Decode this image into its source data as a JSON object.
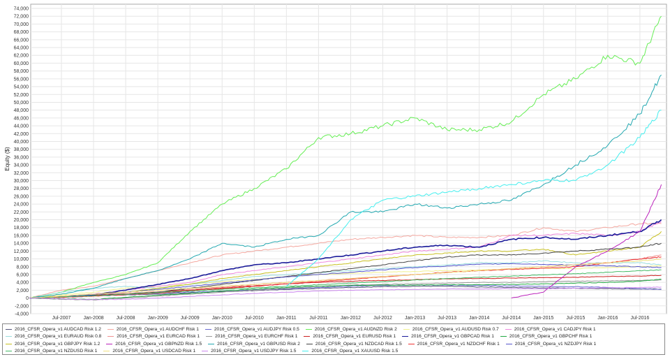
{
  "chart_data": {
    "type": "line",
    "ylabel": "Equity ($)",
    "xlabel": "",
    "ylim": [
      -4000,
      74000
    ],
    "y_ticks": [
      "-4,000",
      "-2,000",
      "0",
      "2,000",
      "4,000",
      "6,000",
      "8,000",
      "10,000",
      "12,000",
      "14,000",
      "16,000",
      "18,000",
      "20,000",
      "22,000",
      "24,000",
      "26,000",
      "28,000",
      "30,000",
      "32,000",
      "34,000",
      "36,000",
      "38,000",
      "40,000",
      "42,000",
      "44,000",
      "46,000",
      "48,000",
      "50,000",
      "52,000",
      "54,000",
      "56,000",
      "58,000",
      "60,000",
      "62,000",
      "64,000",
      "66,000",
      "68,000",
      "70,000",
      "72,000",
      "74,000"
    ],
    "x_ticks": [
      "Jul-2007",
      "Jan-2008",
      "Jul-2008",
      "Jan-2009",
      "Jul-2009",
      "Jan-2010",
      "Jul-2010",
      "Jan-2011",
      "Jul-2011",
      "Jan-2012",
      "Jul-2012",
      "Jan-2013",
      "Jul-2013",
      "Jan-2014",
      "Jul-2014",
      "Jan-2015",
      "Jul-2015",
      "Jan-2016",
      "Jul-2016"
    ],
    "grid": true,
    "legend": "bottom",
    "x": [
      "2007-01",
      "2007-07",
      "2008-01",
      "2008-07",
      "2009-01",
      "2009-07",
      "2010-01",
      "2010-07",
      "2011-01",
      "2011-07",
      "2012-01",
      "2012-07",
      "2013-01",
      "2013-07",
      "2014-01",
      "2014-07",
      "2015-01",
      "2015-07",
      "2016-01",
      "2016-07",
      "2016-11"
    ],
    "series": [
      {
        "name": "2016_CFSR_Opera_v1 AUDCAD Risk 1.2",
        "color": "#55557a",
        "values": [
          0,
          200,
          500,
          800,
          1000,
          1300,
          1600,
          1900,
          2200,
          2500,
          2700,
          2900,
          3000,
          3000,
          2800,
          2700,
          2600,
          2500,
          2400,
          2300,
          2300
        ]
      },
      {
        "name": "2016_CFSR_Opera_v1 AUDCHF Risk 1",
        "color": "#f4a8a0",
        "values": [
          0,
          2000,
          3000,
          5000,
          7000,
          9000,
          11000,
          12000,
          13000,
          14000,
          15000,
          15500,
          16000,
          15500,
          15500,
          16000,
          18000,
          17000,
          18000,
          19000,
          19000
        ]
      },
      {
        "name": "2016_CFSR_Opera_v1 AUDJPY Risk 0.5",
        "color": "#6a6ad0",
        "values": [
          0,
          300,
          600,
          900,
          1200,
          1500,
          1800,
          2100,
          2400,
          2700,
          3000,
          3200,
          3300,
          3300,
          3200,
          3100,
          3000,
          2900,
          2700,
          2400,
          2200
        ]
      },
      {
        "name": "2016_CFSR_Opera_v1 AUDNZD Risk 2",
        "color": "#66ee55",
        "values": [
          0,
          1500,
          4000,
          6000,
          9000,
          17000,
          24000,
          28000,
          33000,
          41000,
          42000,
          44000,
          46000,
          43000,
          43000,
          45000,
          52000,
          56000,
          62000,
          60000,
          72000
        ]
      },
      {
        "name": "2016_CFSR_Opera_v1 AUDUSD Risk 0.7",
        "color": "#f0f090",
        "values": [
          0,
          800,
          1500,
          2500,
          3000,
          3500,
          4200,
          4800,
          5400,
          6000,
          6300,
          6600,
          6800,
          7000,
          7200,
          7400,
          7600,
          7500,
          7800,
          8000,
          8300
        ]
      },
      {
        "name": "2016_CFSR_Opera_v1 CADJPY Risk 1",
        "color": "#ee88dd",
        "values": [
          0,
          500,
          1000,
          2000,
          3000,
          4000,
          6000,
          7000,
          8000,
          9000,
          10000,
          11000,
          12000,
          12500,
          13000,
          16000,
          16000,
          16500,
          16000,
          17000,
          19500
        ]
      },
      {
        "name": "2016_CFSR_Opera_v1 EURAUD Risk 0.8",
        "color": "#99dddd",
        "values": [
          0,
          1500,
          2500,
          3000,
          2500,
          3500,
          4500,
          5500,
          6000,
          6500,
          7000,
          7500,
          8000,
          8500,
          9000,
          9000,
          9500,
          9000,
          9000,
          9000,
          8500
        ]
      },
      {
        "name": "2016_CFSR_Opera_v1 EURCAD Risk 1",
        "color": "#f09090",
        "values": [
          0,
          400,
          800,
          1200,
          1600,
          2200,
          2800,
          3400,
          4000,
          4500,
          5000,
          5500,
          6000,
          6500,
          7000,
          7500,
          8000,
          8500,
          9000,
          10000,
          11000
        ]
      },
      {
        "name": "2016_CFSR_Opera_v1 EURCHF Risk 1",
        "color": "#999999",
        "values": [
          0,
          -300,
          -500,
          0,
          500,
          1000,
          1500,
          2000,
          2500,
          3000,
          3300,
          3500,
          3600,
          3800,
          4000,
          4000,
          4200,
          4300,
          4400,
          4500,
          4600
        ]
      },
      {
        "name": "2016_CFSR_Opera_v1 EURUSD Risk 1",
        "color": "#cc2222",
        "values": [
          0,
          300,
          700,
          1000,
          1500,
          2000,
          2600,
          3100,
          3600,
          4000,
          4300,
          4500,
          4700,
          4900,
          5000,
          5100,
          5200,
          5300,
          5500,
          5600,
          5800
        ]
      },
      {
        "name": "2016_CFSR_Opera_v1 GBPCAD Risk 1",
        "color": "#1a1a99",
        "values": [
          0,
          300,
          800,
          2000,
          3500,
          5000,
          7000,
          8500,
          9000,
          10000,
          11000,
          12000,
          13000,
          13500,
          13000,
          15000,
          15500,
          15000,
          16000,
          17000,
          20000
        ]
      },
      {
        "name": "2016_CFSR_Opera_v1 GBPCHF Risk 1",
        "color": "#22aa44",
        "values": [
          0,
          -200,
          -400,
          200,
          700,
          1200,
          1800,
          2300,
          2700,
          3000,
          3200,
          3300,
          3300,
          3400,
          3400,
          3500,
          3600,
          3800,
          4000,
          4300,
          4800
        ]
      },
      {
        "name": "2016_CFSR_Opera_v1 GBPJPY Risk 1.2",
        "color": "#c8c020",
        "values": [
          0,
          500,
          1000,
          1500,
          2500,
          3500,
          5000,
          6000,
          7000,
          8000,
          9000,
          10000,
          11000,
          11500,
          12000,
          12000,
          12500,
          11000,
          12000,
          13000,
          17000
        ]
      },
      {
        "name": "2016_CFSR_Opera_v1 GBPNZD Risk 1.5",
        "color": "#bb22bb",
        "values": [
          null,
          null,
          null,
          null,
          null,
          null,
          null,
          null,
          null,
          null,
          null,
          null,
          null,
          null,
          null,
          0,
          1500,
          8000,
          12000,
          17000,
          29000
        ]
      },
      {
        "name": "2016_CFSR_Opera_v1 GBPUSD Risk 2",
        "color": "#22a8b0",
        "values": [
          0,
          1000,
          2500,
          5000,
          7000,
          10000,
          14000,
          13000,
          15000,
          16000,
          22000,
          22000,
          24000,
          23000,
          24000,
          25000,
          29000,
          34000,
          39000,
          47000,
          57000
        ]
      },
      {
        "name": "2016_CFSR_Opera_v1 NZDCAD Risk 1.5",
        "color": "#444444",
        "values": [
          0,
          300,
          600,
          1000,
          1500,
          2500,
          3500,
          4500,
          5500,
          6500,
          7500,
          8500,
          9500,
          10500,
          11000,
          11000,
          11500,
          12000,
          12500,
          13000,
          14000
        ]
      },
      {
        "name": "2016_CFSR_Opera_v1 NZDCHF Risk 1",
        "color": "#ee3333",
        "values": [
          0,
          200,
          500,
          900,
          1300,
          1800,
          2400,
          3000,
          3600,
          4200,
          4800,
          5400,
          6000,
          6600,
          7000,
          7300,
          7600,
          8000,
          9000,
          10000,
          10500
        ]
      },
      {
        "name": "2016_CFSR_Opera_v1 NZDJPY Risk 1",
        "color": "#5555cc",
        "values": [
          0,
          400,
          900,
          1500,
          2200,
          3000,
          3800,
          4600,
          5400,
          6000,
          6600,
          7200,
          7800,
          8200,
          8600,
          8800,
          8600,
          8400,
          8200,
          8000,
          7800
        ]
      },
      {
        "name": "2016_CFSR_Opera_v1 NZDUSD Risk 1",
        "color": "#44bb66",
        "values": [
          0,
          300,
          600,
          1000,
          1400,
          1800,
          2200,
          2600,
          3000,
          3400,
          3800,
          4200,
          4600,
          5000,
          5300,
          5600,
          5900,
          6200,
          6600,
          7000,
          7200
        ]
      },
      {
        "name": "2016_CFSR_Opera_v1 USDCAD Risk 1",
        "color": "#f0e080",
        "values": [
          0,
          500,
          1000,
          1500,
          2000,
          2500,
          3000,
          3500,
          4000,
          4500,
          5000,
          5500,
          6000,
          6500,
          7000,
          7500,
          8000,
          8500,
          9000,
          9500,
          10000
        ]
      },
      {
        "name": "2016_CFSR_Opera_v1 USDJPY Risk 1.5",
        "color": "#cc88ee",
        "values": [
          0,
          -200,
          -400,
          -300,
          0,
          400,
          800,
          1200,
          1500,
          1800,
          2000,
          2100,
          2200,
          2300,
          2300,
          2400,
          2400,
          2500,
          2600,
          2700,
          2800
        ]
      },
      {
        "name": "2016_CFSR_Opera_v1 XAUUSD Risk 1.5",
        "color": "#44eeee",
        "values": [
          null,
          null,
          null,
          null,
          null,
          null,
          null,
          null,
          3000,
          10000,
          20000,
          25000,
          26000,
          27000,
          28000,
          29000,
          30000,
          30000,
          34000,
          41000,
          48000
        ]
      }
    ]
  }
}
